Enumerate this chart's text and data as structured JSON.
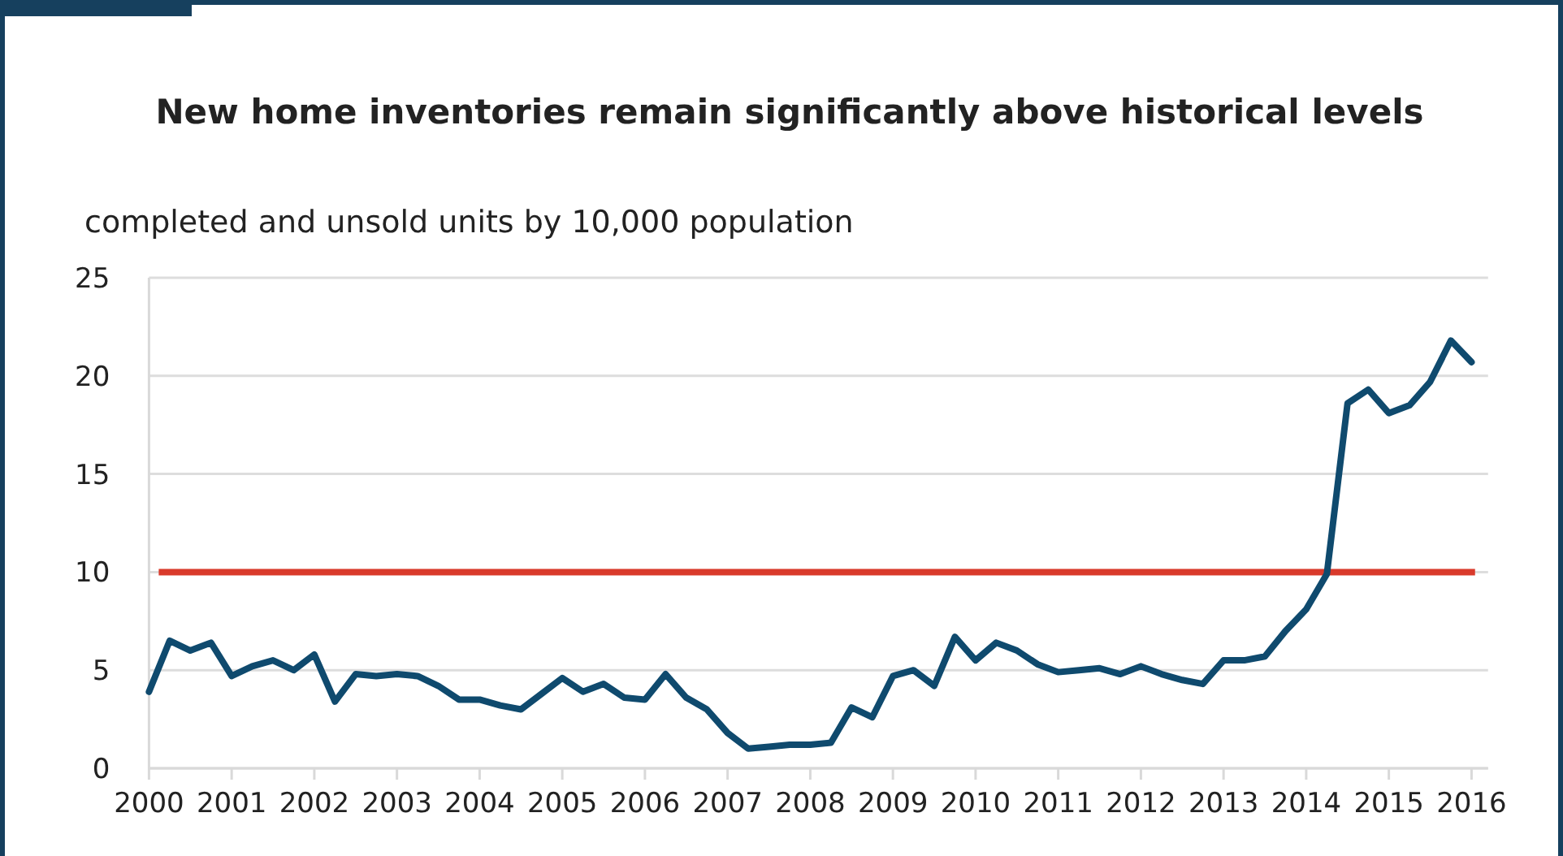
{
  "chart_data": {
    "type": "line",
    "title": "New home inventories remain significantly above historical levels",
    "ylabel": "completed and unsold units by 10,000 population",
    "x": [
      2000,
      2000.25,
      2000.5,
      2000.75,
      2001,
      2001.25,
      2001.5,
      2001.75,
      2002,
      2002.25,
      2002.5,
      2002.75,
      2003,
      2003.25,
      2003.5,
      2003.75,
      2004,
      2004.25,
      2004.5,
      2004.75,
      2005,
      2005.25,
      2005.5,
      2005.75,
      2006,
      2006.25,
      2006.5,
      2006.75,
      2007,
      2007.25,
      2007.5,
      2007.75,
      2008,
      2008.25,
      2008.5,
      2008.75,
      2009,
      2009.25,
      2009.5,
      2009.75,
      2010,
      2010.25,
      2010.5,
      2010.75,
      2011,
      2011.25,
      2011.5,
      2011.75,
      2012,
      2012.25,
      2012.5,
      2012.75,
      2013,
      2013.25,
      2013.5,
      2013.75,
      2014,
      2014.25,
      2014.5,
      2014.75,
      2015,
      2015.25,
      2015.5,
      2015.75,
      2016
    ],
    "series": [
      {
        "color": "#0f4a6e",
        "values": [
          3.9,
          6.5,
          6.0,
          6.4,
          4.7,
          5.2,
          5.5,
          5.0,
          5.8,
          3.4,
          4.8,
          4.7,
          4.8,
          4.7,
          4.2,
          3.5,
          3.5,
          3.2,
          3.0,
          3.8,
          4.6,
          3.9,
          4.3,
          3.6,
          3.5,
          4.8,
          3.6,
          3.0,
          1.8,
          1.0,
          1.1,
          1.2,
          1.2,
          1.3,
          3.1,
          2.6,
          4.7,
          5.0,
          4.2,
          6.7,
          5.5,
          6.4,
          6.0,
          5.3,
          4.9,
          5.0,
          5.1,
          4.8,
          5.2,
          4.8,
          4.5,
          4.3,
          5.5,
          5.5,
          5.7,
          7.0,
          8.1,
          9.9,
          18.6,
          19.3,
          18.1,
          18.5,
          19.7,
          21.8,
          20.7
        ]
      }
    ],
    "xlim": [
      2000,
      2016.2
    ],
    "xticks": [
      2000,
      2001,
      2002,
      2003,
      2004,
      2005,
      2006,
      2007,
      2008,
      2009,
      2010,
      2011,
      2012,
      2013,
      2014,
      2015,
      2016
    ],
    "ylim": [
      0,
      25
    ],
    "yticks": [
      0,
      5,
      10,
      15,
      20,
      25
    ],
    "grid": "y",
    "marker": "none",
    "line_style": "solid",
    "ref_lines": [
      {
        "axis": "y",
        "value": 10,
        "color": "#d93a2b",
        "line_style": "solid"
      }
    ]
  }
}
